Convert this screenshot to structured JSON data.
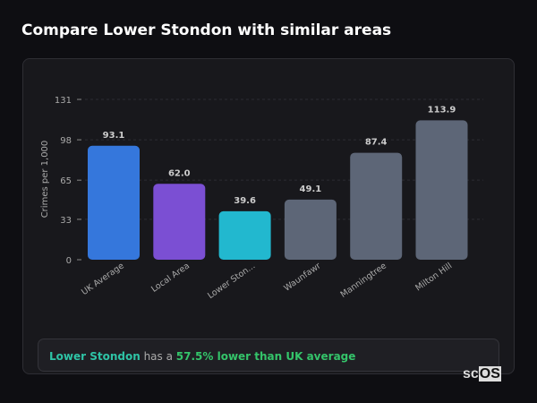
{
  "title": "Compare Lower Stondon with similar areas",
  "chart_data": {
    "type": "bar",
    "categories": [
      "UK Average",
      "Local Area",
      "Lower Ston...",
      "Waunfawr",
      "Manningtree",
      "Milton Hill"
    ],
    "values": [
      93.1,
      62.0,
      39.6,
      49.1,
      87.4,
      113.9
    ],
    "value_labels": [
      "93.1",
      "62.0",
      "39.6",
      "49.1",
      "87.4",
      "113.9"
    ],
    "colors": [
      "#3577dc",
      "#7b4fd3",
      "#22b8cf",
      "#5d6677",
      "#5d6677",
      "#5d6677"
    ],
    "ylabel": "Crimes per 1,000",
    "yticks": [
      0,
      33,
      65,
      98,
      131
    ],
    "ylim": [
      0,
      131
    ],
    "grid": true
  },
  "summary": {
    "place": "Lower Stondon",
    "middle": " has a ",
    "stat": "57.5% lower than UK average"
  },
  "logo": {
    "text1": "sc",
    "text2": "OS"
  }
}
